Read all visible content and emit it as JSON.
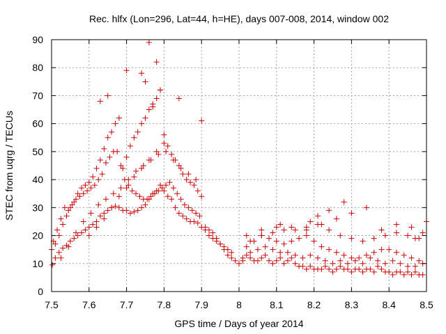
{
  "chart_data": {
    "type": "scatter",
    "title": "Rec. hlfx (Lon=296, Lat=44, h=HE), days 007-008, 2014, window 002",
    "xlabel": "GPS time / Days of year 2014",
    "ylabel": "STEC from uqrg / TECUs",
    "xlim": [
      7.5,
      8.5
    ],
    "ylim": [
      0,
      90
    ],
    "xticks": [
      7.5,
      7.6,
      7.7,
      7.8,
      7.9,
      8.0,
      8.1,
      8.2,
      8.3,
      8.4,
      8.5
    ],
    "xtick_labels": [
      "7.5",
      "7.6",
      "7.7",
      "7.8",
      "7.9",
      "8",
      "8.1",
      "8.2",
      "8.3",
      "8.4",
      "8.5"
    ],
    "yticks": [
      0,
      10,
      20,
      30,
      40,
      50,
      60,
      70,
      80,
      90
    ],
    "ytick_labels": [
      "0",
      "10",
      "20",
      "30",
      "40",
      "50",
      "60",
      "70",
      "80",
      "90"
    ],
    "grid": true,
    "marker": "+",
    "color": "#cc0000",
    "series": [
      {
        "name": "STEC",
        "x": [
          7.502,
          7.51,
          7.52,
          7.53,
          7.54,
          7.55,
          7.56,
          7.57,
          7.58,
          7.59,
          7.6,
          7.61,
          7.62,
          7.63,
          7.64,
          7.65,
          7.66,
          7.67,
          7.68,
          7.69,
          7.7,
          7.71,
          7.72,
          7.73,
          7.74,
          7.75,
          7.76,
          7.77,
          7.78,
          7.79,
          7.8,
          7.81,
          7.82,
          7.83,
          7.84,
          7.85,
          7.86,
          7.87,
          7.88,
          7.89,
          7.9,
          7.91,
          7.92,
          7.93,
          7.94,
          7.95,
          7.96,
          7.97,
          7.98,
          7.5,
          7.51,
          7.52,
          7.53,
          7.54,
          7.55,
          7.56,
          7.57,
          7.58,
          7.59,
          7.6,
          7.61,
          7.62,
          7.63,
          7.64,
          7.65,
          7.66,
          7.67,
          7.68,
          7.69,
          7.7,
          7.71,
          7.72,
          7.73,
          7.74,
          7.75,
          7.76,
          7.77,
          7.78,
          7.79,
          7.8,
          7.81,
          7.82,
          7.83,
          7.84,
          7.85,
          7.86,
          7.87,
          7.88,
          7.89,
          7.9,
          7.505,
          7.515,
          7.525,
          7.535,
          7.545,
          7.555,
          7.565,
          7.575,
          7.585,
          7.595,
          7.605,
          7.615,
          7.625,
          7.635,
          7.645,
          7.655,
          7.665,
          7.675,
          7.685,
          7.695,
          7.705,
          7.715,
          7.725,
          7.735,
          7.745,
          7.755,
          7.765,
          7.775,
          7.785,
          7.795,
          7.805,
          7.815,
          7.825,
          7.835,
          7.845,
          7.855,
          7.865,
          7.875,
          7.885,
          7.895,
          7.525,
          7.545,
          7.565,
          7.585,
          7.605,
          7.625,
          7.645,
          7.665,
          7.685,
          7.705,
          7.725,
          7.745,
          7.765,
          7.785,
          7.805,
          7.825,
          7.845,
          7.865,
          7.885,
          7.6,
          7.62,
          7.64,
          7.66,
          7.68,
          7.7,
          7.72,
          7.74,
          7.76,
          7.78,
          7.8,
          7.63,
          7.65,
          7.7,
          7.74,
          7.75,
          7.76,
          7.78,
          7.79,
          7.77,
          7.84,
          7.9,
          7.91,
          7.92,
          7.93,
          7.94,
          7.95,
          7.96,
          7.97,
          7.98,
          7.99,
          8.0,
          8.01,
          8.02,
          8.03,
          8.04,
          8.05,
          8.06,
          8.07,
          8.08,
          8.09,
          8.1,
          8.11,
          8.12,
          8.13,
          8.14,
          8.15,
          8.16,
          8.17,
          8.18,
          8.19,
          8.2,
          8.21,
          8.22,
          8.23,
          8.24,
          8.25,
          8.26,
          8.27,
          8.28,
          8.29,
          8.3,
          8.31,
          8.32,
          8.33,
          8.34,
          8.35,
          8.36,
          8.37,
          8.38,
          8.39,
          8.4,
          8.41,
          8.42,
          8.43,
          8.44,
          8.45,
          8.46,
          8.47,
          8.48,
          8.49,
          8.01,
          8.03,
          8.05,
          8.07,
          8.09,
          8.11,
          8.13,
          8.15,
          8.17,
          8.19,
          8.21,
          8.23,
          8.25,
          8.27,
          8.29,
          8.31,
          8.33,
          8.35,
          8.37,
          8.39,
          8.41,
          8.43,
          8.45,
          8.47,
          8.49,
          8.02,
          8.04,
          8.06,
          8.08,
          8.1,
          8.12,
          8.14,
          8.16,
          8.18,
          8.2,
          8.22,
          8.24,
          8.26,
          8.28,
          8.3,
          8.32,
          8.34,
          8.36,
          8.38,
          8.4,
          8.42,
          8.44,
          8.46,
          8.48,
          8.03,
          8.06,
          8.09,
          8.12,
          8.15,
          8.18,
          8.21,
          8.24,
          8.27,
          8.3,
          8.33,
          8.36,
          8.39,
          8.42,
          8.45,
          8.48,
          8.02,
          8.06,
          8.1,
          8.14,
          8.18,
          8.22,
          8.26,
          8.3,
          8.34,
          8.38,
          8.42,
          8.46,
          8.5,
          8.24,
          8.28,
          8.21,
          8.49,
          8.47,
          8.11,
          8.19
        ],
        "y": [
          9.5,
          12,
          14,
          15.5,
          16.5,
          18,
          19,
          20,
          21,
          22,
          23,
          24,
          25,
          27,
          28,
          29,
          30,
          30.5,
          30,
          29,
          29,
          28,
          28.5,
          29,
          30,
          31,
          33,
          35,
          36,
          38,
          36,
          34,
          33,
          30,
          28,
          27,
          26,
          25,
          25,
          24.5,
          23,
          22,
          20,
          19,
          18,
          17,
          16,
          15,
          14,
          15,
          17,
          20,
          24,
          27,
          30,
          32,
          35,
          37,
          38,
          39,
          41,
          44,
          47,
          51,
          55,
          57,
          60,
          62,
          44,
          48,
          52,
          55,
          57,
          60,
          62,
          65,
          67,
          69,
          72,
          56,
          52,
          49,
          47,
          45,
          42,
          40,
          39,
          38,
          36,
          34,
          18,
          22,
          26,
          30,
          29,
          31,
          33,
          34,
          35,
          36,
          37,
          38,
          40,
          42,
          46,
          48,
          50,
          50,
          45,
          40,
          38,
          36,
          35,
          34,
          33,
          33,
          34,
          35,
          36,
          37,
          38,
          39,
          37,
          35,
          33,
          31,
          30,
          29,
          28,
          27,
          12,
          16,
          21,
          25,
          28,
          31,
          33,
          35,
          37,
          40,
          43,
          45,
          47,
          49,
          50,
          47,
          44,
          42,
          40,
          20,
          23,
          26,
          30,
          34,
          37,
          41,
          44,
          47,
          50,
          53,
          68,
          70,
          79,
          78,
          75,
          89,
          82,
          72,
          66,
          69,
          61,
          23,
          22,
          21,
          19,
          17,
          15,
          13,
          12,
          11,
          10,
          11,
          13,
          12,
          11,
          11,
          12,
          13,
          11,
          10,
          11,
          12,
          10,
          11,
          12,
          10,
          9,
          9,
          8,
          9,
          8,
          8,
          8,
          9,
          8,
          7,
          8,
          9,
          8,
          8,
          7,
          8,
          8,
          7,
          8,
          8,
          7,
          9,
          8,
          7,
          7,
          6,
          7,
          7,
          6,
          7,
          6,
          7,
          6,
          6,
          12,
          14,
          15,
          16,
          15,
          14,
          14,
          13,
          12,
          13,
          12,
          11,
          10,
          11,
          10,
          11,
          10,
          12,
          11,
          10,
          11,
          10,
          9,
          9,
          10,
          16,
          18,
          20,
          19,
          18,
          17,
          18,
          19,
          20,
          18,
          16,
          15,
          14,
          13,
          12,
          12,
          13,
          14,
          15,
          15,
          14,
          13,
          12,
          11,
          18,
          20,
          21,
          22,
          22,
          23,
          24,
          22,
          20,
          19,
          18,
          19,
          20,
          21,
          20,
          19,
          20,
          22,
          23,
          23,
          22,
          24,
          26,
          28,
          30,
          22,
          24,
          23,
          25,
          29,
          32,
          27,
          21,
          19,
          24,
          25
        ]
      }
    ]
  }
}
